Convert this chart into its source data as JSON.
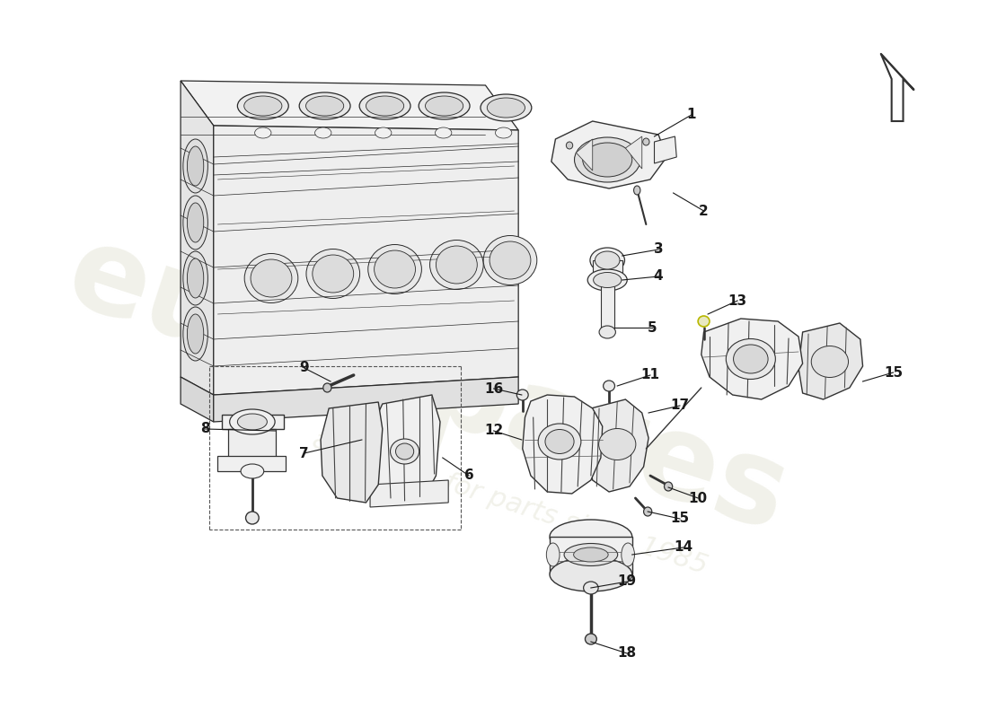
{
  "background_color": "#ffffff",
  "line_color": "#2a2a2a",
  "label_color": "#1a1a1a",
  "watermark1": "eurospares",
  "watermark2": "a passion for parts since 1985",
  "label_fontsize": 11,
  "figsize": [
    11.0,
    8.0
  ],
  "dpi": 100,
  "engine_lw": 0.9,
  "part_lw": 1.0,
  "engine_face_colors": {
    "top": "#f0f0f0",
    "front": "#e8e8e8",
    "right": "#ececec"
  },
  "part_outline_color": "#333333",
  "part_fill": "#f5f5f5",
  "part_shadow": "#d8d8d8",
  "arrow_color": "#333333",
  "leader_color": "#333333"
}
